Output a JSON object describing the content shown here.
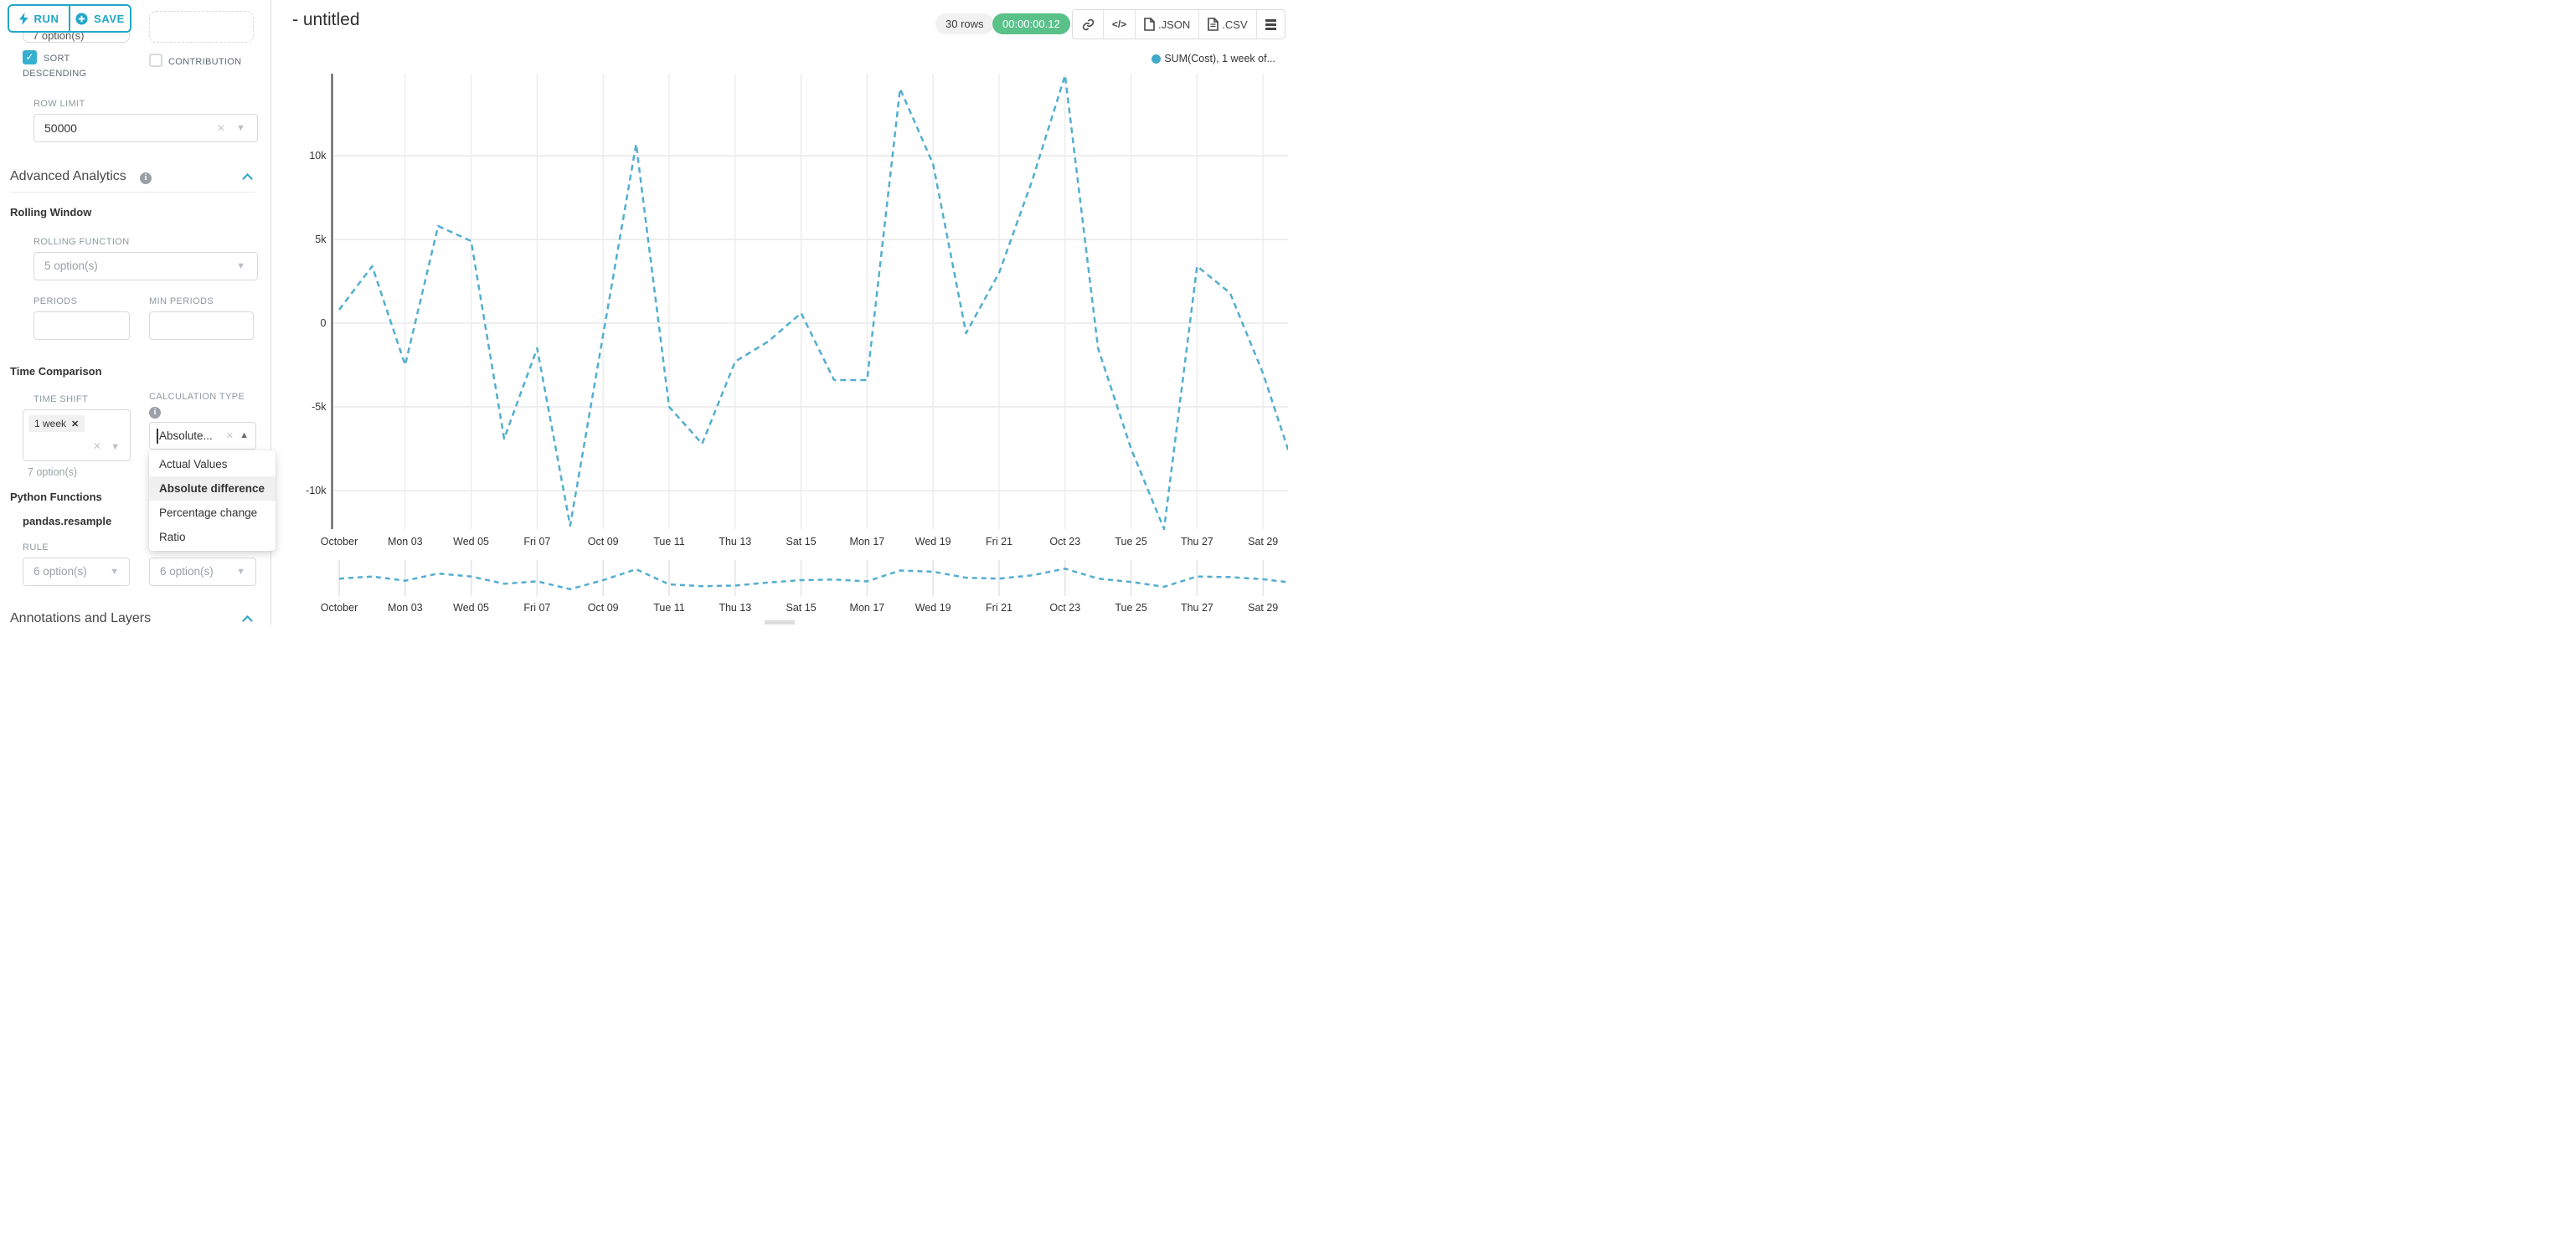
{
  "toolbar": {
    "run_label": "RUN",
    "save_label": "SAVE"
  },
  "controls": {
    "partial_metric_select": {
      "value": "7 option(s)"
    },
    "sort_descending": {
      "label": "SORT DESCENDING",
      "checked": true,
      "check_glyph": "✓"
    },
    "contribution": {
      "label": "CONTRIBUTION",
      "checked": false
    },
    "row_limit": {
      "label": "ROW LIMIT",
      "value": "50000"
    },
    "advanced_analytics": {
      "title": "Advanced Analytics"
    },
    "rolling_window": {
      "title": "Rolling Window",
      "rolling_function": {
        "label": "ROLLING FUNCTION",
        "placeholder": "5 option(s)"
      },
      "periods_label": "PERIODS",
      "min_periods_label": "MIN PERIODS"
    },
    "time_comparison": {
      "title": "Time Comparison",
      "time_shift": {
        "label": "TIME SHIFT",
        "tag": "1 week",
        "tag_remove": "✕",
        "helper": "7 option(s)"
      },
      "calculation_type": {
        "label": "CALCULATION TYPE",
        "value": "Absolute...",
        "options": [
          "Actual Values",
          "Absolute difference",
          "Percentage change",
          "Ratio"
        ],
        "selected": "Absolute difference"
      }
    },
    "python_functions": {
      "title": "Python Functions",
      "subtitle": "pandas.resample",
      "rule_label": "RULE",
      "rule_placeholder": "6 option(s)",
      "method_placeholder": "6 option(s)"
    },
    "annotations": {
      "title": "Annotations and Layers"
    }
  },
  "header": {
    "title": "- untitled",
    "rows_badge": "30 rows",
    "timer_badge": "00:00:00.12",
    "export_json": ".JSON",
    "export_csv": ".CSV",
    "code_glyph": "</>"
  },
  "chart_data": {
    "type": "line",
    "legend": [
      {
        "label": "SUM(Cost), 1 week of...",
        "color": "#41a8c9"
      }
    ],
    "x_dates": [
      "Oct 01",
      "Oct 02",
      "Oct 03",
      "Oct 04",
      "Oct 05",
      "Oct 06",
      "Oct 07",
      "Oct 08",
      "Oct 09",
      "Oct 10",
      "Oct 11",
      "Oct 12",
      "Oct 13",
      "Oct 14",
      "Oct 15",
      "Oct 16",
      "Oct 17",
      "Oct 18",
      "Oct 19",
      "Oct 20",
      "Oct 21",
      "Oct 22",
      "Oct 23",
      "Oct 24",
      "Oct 25",
      "Oct 26",
      "Oct 27",
      "Oct 28",
      "Oct 29",
      "Oct 30"
    ],
    "x_tick_labels": [
      "October",
      "Mon 03",
      "Wed 05",
      "Fri 07",
      "Oct 09",
      "Tue 11",
      "Thu 13",
      "Sat 15",
      "Mon 17",
      "Wed 19",
      "Fri 21",
      "Oct 23",
      "Tue 25",
      "Thu 27",
      "Sat 29"
    ],
    "y_tick_labels": [
      "10k",
      "5k",
      "0",
      "-5k",
      "-10k"
    ],
    "y_tick_values": [
      10000,
      5000,
      0,
      -5000,
      -10000
    ],
    "ylim": [
      -12500,
      15000
    ],
    "grid": true,
    "line_style": "dashed",
    "series": [
      {
        "name": "SUM(Cost), 1 week offset",
        "color": "#53aecf",
        "values": [
          800,
          3400,
          -2500,
          5800,
          4900,
          -6900,
          -1500,
          -12100,
          -700,
          10700,
          -5000,
          -7200,
          -2300,
          -1100,
          600,
          -3400,
          -3400,
          14000,
          9500,
          -600,
          3000,
          8500,
          14800,
          -1500,
          -7500,
          -12300,
          3400,
          1800,
          -3000,
          -9000
        ]
      }
    ],
    "preview_scrubber": {
      "color": "#53aecf",
      "values_norm": [
        0.55,
        0.62,
        0.48,
        0.72,
        0.62,
        0.38,
        0.46,
        0.2,
        0.5,
        0.86,
        0.36,
        0.3,
        0.32,
        0.42,
        0.5,
        0.52,
        0.46,
        0.82,
        0.78,
        0.58,
        0.55,
        0.66,
        0.88,
        0.55,
        0.44,
        0.28,
        0.62,
        0.6,
        0.53,
        0.4
      ]
    }
  }
}
